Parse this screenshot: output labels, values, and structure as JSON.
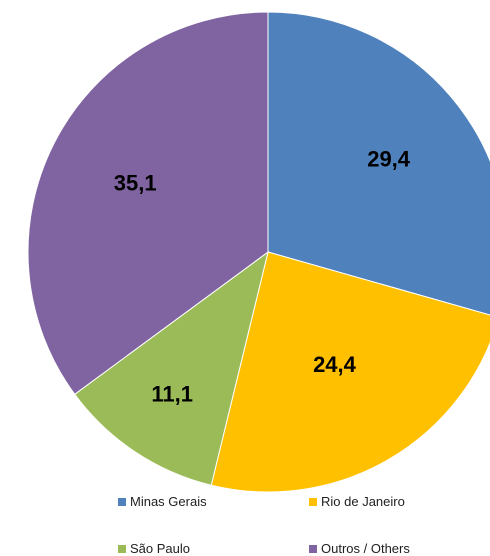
{
  "chart_data": {
    "type": "pie",
    "title": "",
    "categories": [
      "Minas Gerais",
      "Rio de Janeiro",
      "São Paulo",
      "Outros / Others"
    ],
    "values": [
      29.4,
      24.4,
      11.1,
      35.1
    ],
    "data_labels": [
      "29,4",
      "24,4",
      "11,1",
      "35,1"
    ],
    "colors": [
      "#4F81BD",
      "#FFC000",
      "#9BBB59",
      "#8064A2"
    ],
    "start_angle_deg": 0,
    "direction": "clockwise",
    "legend_position": "bottom"
  }
}
